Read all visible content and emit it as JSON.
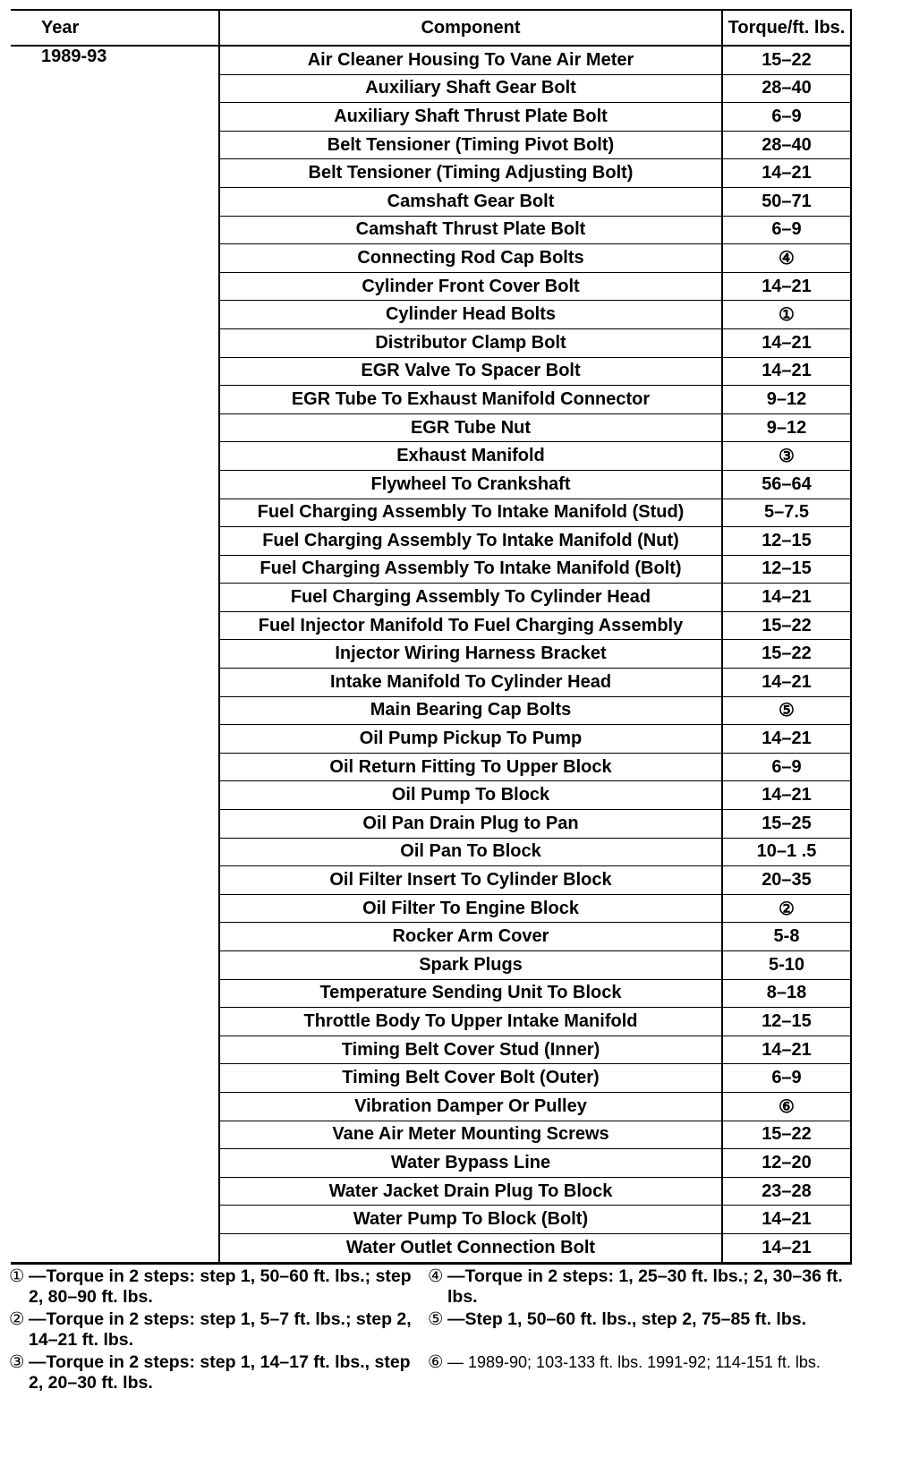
{
  "table": {
    "headers": {
      "year": "Year",
      "component": "Component",
      "torque": "Torque/ft. lbs."
    },
    "year": "1989-93",
    "rows": [
      [
        "Air Cleaner Housing To Vane Air Meter",
        "15–22"
      ],
      [
        "Auxiliary Shaft Gear Bolt",
        "28–40"
      ],
      [
        "Auxiliary Shaft Thrust Plate Bolt",
        "6–9"
      ],
      [
        "Belt Tensioner (Timing Pivot Bolt)",
        "28–40"
      ],
      [
        "Belt Tensioner (Timing Adjusting Bolt)",
        "14–21"
      ],
      [
        "Camshaft Gear Bolt",
        "50–71"
      ],
      [
        "Camshaft Thrust Plate Bolt",
        "6–9"
      ],
      [
        "Connecting Rod Cap Bolts",
        "④"
      ],
      [
        "Cylinder Front Cover Bolt",
        "14–21"
      ],
      [
        "Cylinder Head Bolts",
        "①"
      ],
      [
        "Distributor Clamp Bolt",
        "14–21"
      ],
      [
        "EGR Valve To Spacer Bolt",
        "14–21"
      ],
      [
        "EGR Tube To Exhaust Manifold Connector",
        "9–12"
      ],
      [
        "EGR Tube Nut",
        "9–12"
      ],
      [
        "Exhaust Manifold",
        "③"
      ],
      [
        "Flywheel To Crankshaft",
        "56–64"
      ],
      [
        "Fuel Charging Assembly To Intake Manifold (Stud)",
        "5–7.5"
      ],
      [
        "Fuel Charging Assembly To Intake Manifold (Nut)",
        "12–15"
      ],
      [
        "Fuel Charging Assembly To Intake Manifold (Bolt)",
        "12–15"
      ],
      [
        "Fuel Charging Assembly To Cylinder Head",
        "14–21"
      ],
      [
        "Fuel Injector Manifold To Fuel Charging Assembly",
        "15–22"
      ],
      [
        "Injector Wiring Harness Bracket",
        "15–22"
      ],
      [
        "Intake Manifold To Cylinder Head",
        "14–21"
      ],
      [
        "Main Bearing Cap Bolts",
        "⑤"
      ],
      [
        "Oil Pump Pickup To Pump",
        "14–21"
      ],
      [
        "Oil Return Fitting To Upper Block",
        "6–9"
      ],
      [
        "Oil Pump To Block",
        "14–21"
      ],
      [
        "Oil Pan Drain Plug to Pan",
        "15–25"
      ],
      [
        "Oil Pan To Block",
        "10–1  .5"
      ],
      [
        "Oil Filter Insert To Cylinder Block",
        "20–35"
      ],
      [
        "Oil Filter To Engine Block",
        "②"
      ],
      [
        "Rocker Arm Cover",
        "5-8"
      ],
      [
        "Spark Plugs",
        "5-10"
      ],
      [
        "Temperature Sending Unit To Block",
        "8–18"
      ],
      [
        "Throttle Body To Upper Intake Manifold",
        "12–15"
      ],
      [
        "Timing Belt Cover Stud (Inner)",
        "14–21"
      ],
      [
        "Timing Belt Cover Bolt (Outer)",
        "6–9"
      ],
      [
        "Vibration Damper Or Pulley",
        "⑥"
      ],
      [
        "Vane Air Meter Mounting Screws",
        "15–22"
      ],
      [
        "Water Bypass Line",
        "12–20"
      ],
      [
        "Water Jacket Drain Plug To Block",
        "23–28"
      ],
      [
        "Water Pump To Block (Bolt)",
        "14–21"
      ],
      [
        "Water Outlet Connection Bolt",
        "14–21"
      ]
    ]
  },
  "footnotes": [
    {
      "mark": "①",
      "text": "—Torque in 2 steps: step 1, 50–60 ft. lbs.; step 2, 80–90 ft. lbs."
    },
    {
      "mark": "④",
      "text": "—Torque in 2 steps: 1, 25–30 ft. lbs.; 2, 30–36 ft. lbs."
    },
    {
      "mark": "②",
      "text": "—Torque in 2 steps: step 1, 5–7 ft. lbs.; step 2, 14–21 ft. lbs."
    },
    {
      "mark": "⑤",
      "text": "—Step 1, 50–60 ft. lbs., step 2, 75–85 ft. lbs."
    },
    {
      "mark": "③",
      "text": "—Torque in 2 steps: step 1, 14–17 ft. lbs., step 2, 20–30 ft. lbs."
    },
    {
      "mark": "⑥",
      "text": "— 1989-90; 103-133 ft. lbs. 1991-92; 114-151 ft. lbs."
    }
  ]
}
